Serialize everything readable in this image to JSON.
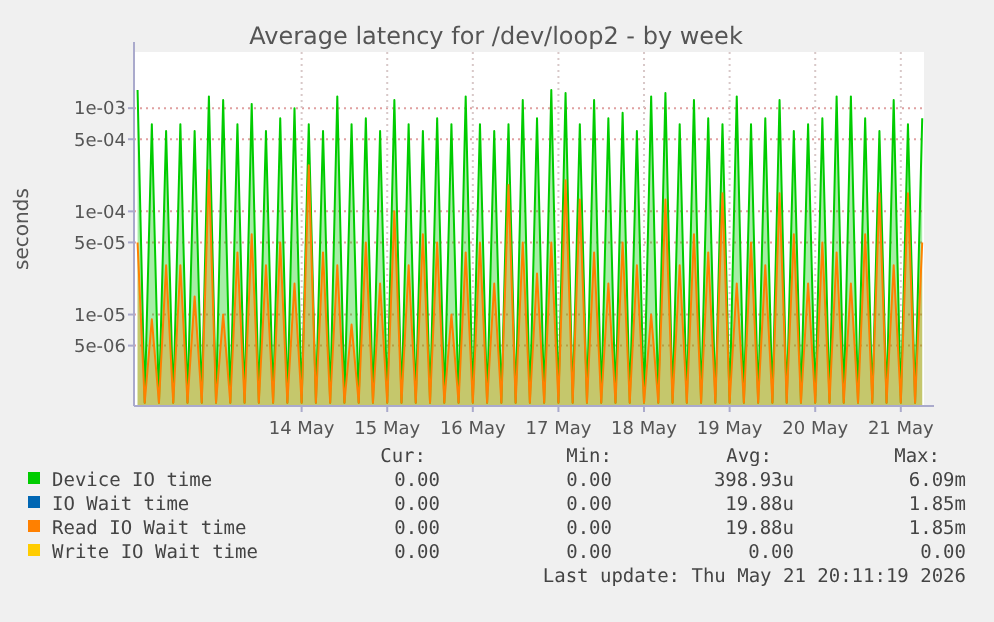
{
  "chart_data": {
    "type": "area",
    "title": "Average latency for /dev/loop2 - by week",
    "ylabel": "seconds",
    "log": "y",
    "grid": true,
    "legend": "bottom",
    "xlim": [
      "2026-05-12T13:00",
      "2026-05-21T18:30"
    ],
    "xticks": [
      {
        "value": "2026-05-14T12:00",
        "label": "14 May"
      },
      {
        "value": "2026-05-15T12:00",
        "label": "15 May"
      },
      {
        "value": "2026-05-16T12:00",
        "label": "16 May"
      },
      {
        "value": "2026-05-17T12:00",
        "label": "17 May"
      },
      {
        "value": "2026-05-18T12:00",
        "label": "18 May"
      },
      {
        "value": "2026-05-19T12:00",
        "label": "19 May"
      },
      {
        "value": "2026-05-20T12:00",
        "label": "20 May"
      },
      {
        "value": "2026-05-21T12:00",
        "label": "21 May"
      }
    ],
    "ylim": [
      1.3e-06,
      0.0035
    ],
    "yticks": [
      {
        "value": 0.001,
        "label": "1e-03"
      },
      {
        "value": 0.0005,
        "label": "5e-04"
      },
      {
        "value": 0.0001,
        "label": "1e-04"
      },
      {
        "value": 5e-05,
        "label": "5e-05"
      },
      {
        "value": 1e-05,
        "label": "1e-05"
      },
      {
        "value": 5e-06,
        "label": "5e-06"
      }
    ],
    "x": [
      "2026-05-12T14:00",
      "2026-05-12T16:00",
      "2026-05-12T18:00",
      "2026-05-12T20:00",
      "2026-05-12T22:00",
      "2026-05-13T00:00",
      "2026-05-13T02:00",
      "2026-05-13T04:00",
      "2026-05-13T06:00",
      "2026-05-13T08:00",
      "2026-05-13T10:00",
      "2026-05-13T12:00",
      "2026-05-13T14:00",
      "2026-05-13T16:00",
      "2026-05-13T18:00",
      "2026-05-13T20:00",
      "2026-05-13T22:00",
      "2026-05-14T00:00",
      "2026-05-14T02:00",
      "2026-05-14T04:00",
      "2026-05-14T06:00",
      "2026-05-14T08:00",
      "2026-05-14T10:00",
      "2026-05-14T12:00",
      "2026-05-14T14:00",
      "2026-05-14T16:00",
      "2026-05-14T18:00",
      "2026-05-14T20:00",
      "2026-05-14T22:00",
      "2026-05-15T00:00",
      "2026-05-15T02:00",
      "2026-05-15T04:00",
      "2026-05-15T06:00",
      "2026-05-15T08:00",
      "2026-05-15T10:00",
      "2026-05-15T12:00",
      "2026-05-15T14:00",
      "2026-05-15T16:00",
      "2026-05-15T18:00",
      "2026-05-15T20:00",
      "2026-05-15T22:00",
      "2026-05-16T00:00",
      "2026-05-16T02:00",
      "2026-05-16T04:00",
      "2026-05-16T06:00",
      "2026-05-16T08:00",
      "2026-05-16T10:00",
      "2026-05-16T12:00",
      "2026-05-16T14:00",
      "2026-05-16T16:00",
      "2026-05-16T18:00",
      "2026-05-16T20:00",
      "2026-05-16T22:00",
      "2026-05-17T00:00",
      "2026-05-17T02:00",
      "2026-05-17T04:00",
      "2026-05-17T06:00",
      "2026-05-17T08:00",
      "2026-05-17T10:00",
      "2026-05-17T12:00",
      "2026-05-17T14:00",
      "2026-05-17T16:00",
      "2026-05-17T18:00",
      "2026-05-17T20:00",
      "2026-05-17T22:00",
      "2026-05-18T00:00",
      "2026-05-18T02:00",
      "2026-05-18T04:00",
      "2026-05-18T06:00",
      "2026-05-18T08:00",
      "2026-05-18T10:00",
      "2026-05-18T12:00",
      "2026-05-18T14:00",
      "2026-05-18T16:00",
      "2026-05-18T18:00",
      "2026-05-18T20:00",
      "2026-05-18T22:00",
      "2026-05-19T00:00",
      "2026-05-19T02:00",
      "2026-05-19T04:00",
      "2026-05-19T06:00",
      "2026-05-19T08:00",
      "2026-05-19T10:00",
      "2026-05-19T12:00",
      "2026-05-19T14:00",
      "2026-05-19T16:00",
      "2026-05-19T18:00",
      "2026-05-19T20:00",
      "2026-05-19T22:00",
      "2026-05-20T00:00",
      "2026-05-20T02:00",
      "2026-05-20T04:00",
      "2026-05-20T06:00",
      "2026-05-20T08:00",
      "2026-05-20T10:00",
      "2026-05-20T12:00",
      "2026-05-20T14:00",
      "2026-05-20T16:00",
      "2026-05-20T18:00",
      "2026-05-20T20:00",
      "2026-05-20T22:00",
      "2026-05-21T00:00",
      "2026-05-21T02:00",
      "2026-05-21T04:00",
      "2026-05-21T06:00",
      "2026-05-21T08:00",
      "2026-05-21T10:00",
      "2026-05-21T12:00",
      "2026-05-21T14:00",
      "2026-05-21T16:00",
      "2026-05-21T18:00"
    ],
    "series": [
      {
        "name": "Device IO time",
        "color": "#00cc00",
        "values": [
          0.0015,
          1.4e-06,
          0.0007,
          1.4e-06,
          0.0006,
          1.4e-06,
          0.0007,
          1.4e-06,
          0.0006,
          1.4e-06,
          0.0013,
          1.4e-06,
          0.0012,
          1.4e-06,
          0.0007,
          1.4e-06,
          0.0011,
          1.4e-06,
          0.0006,
          1.4e-06,
          0.0008,
          1.4e-06,
          0.001,
          1.4e-06,
          0.0007,
          1.4e-06,
          0.0006,
          1.4e-06,
          0.0013,
          1.4e-06,
          0.0007,
          1.4e-06,
          0.0008,
          1.4e-06,
          0.0006,
          1.4e-06,
          0.0012,
          1.4e-06,
          0.0007,
          1.4e-06,
          0.0006,
          1.4e-06,
          0.0008,
          1.4e-06,
          0.0007,
          1.4e-06,
          0.0013,
          1.4e-06,
          0.0007,
          1.4e-06,
          0.0006,
          1.4e-06,
          0.0007,
          1.4e-06,
          0.0012,
          1.4e-06,
          0.0008,
          1.4e-06,
          0.0015,
          1.4e-06,
          0.0014,
          1.4e-06,
          0.0007,
          1.4e-06,
          0.0012,
          1.4e-06,
          0.0008,
          1.4e-06,
          0.0009,
          1.4e-06,
          0.0006,
          1.4e-06,
          0.0013,
          1.4e-06,
          0.0014,
          1.4e-06,
          0.0007,
          1.4e-06,
          0.0012,
          1.4e-06,
          0.0008,
          1.4e-06,
          0.0007,
          1.4e-06,
          0.0013,
          1.4e-06,
          0.0007,
          1.4e-06,
          0.0008,
          1.4e-06,
          0.0012,
          1.4e-06,
          0.0006,
          1.4e-06,
          0.0007,
          1.4e-06,
          0.0008,
          1.4e-06,
          0.0013,
          1.4e-06,
          0.0013,
          1.4e-06,
          0.0008,
          1.4e-06,
          0.0006,
          1.4e-06,
          0.0012,
          1.4e-06,
          0.0007,
          1.4e-06,
          0.0008
        ]
      },
      {
        "name": "IO Wait time",
        "color": "#0066b3",
        "values": [
          null,
          null,
          null,
          null,
          null,
          null,
          null,
          null,
          null,
          null,
          null,
          null,
          null,
          null,
          null,
          null,
          null,
          null,
          null,
          null,
          null,
          null,
          null,
          null,
          null,
          null,
          null,
          null,
          null,
          null,
          null,
          null,
          null,
          null,
          null,
          null,
          null,
          null,
          null,
          null,
          null,
          null,
          null,
          null,
          null,
          null,
          null,
          null,
          null,
          null,
          null,
          null,
          null,
          null,
          null,
          null,
          null,
          null,
          null,
          null,
          null,
          null,
          null,
          null,
          null,
          null,
          null,
          null,
          null,
          null,
          null,
          null,
          null,
          null,
          null,
          null,
          null,
          null,
          null,
          null,
          null,
          null,
          null,
          null,
          null,
          null,
          null,
          null,
          null,
          null,
          null,
          null,
          null,
          null,
          null,
          null,
          null,
          null,
          null,
          null,
          null,
          null,
          null,
          null,
          null,
          null,
          null,
          null,
          null,
          null,
          null
        ]
      },
      {
        "name": "Read IO Wait time",
        "color": "#ff8000",
        "values": [
          5e-05,
          1.4e-06,
          9e-06,
          1.4e-06,
          3e-05,
          1.4e-06,
          3e-05,
          1.4e-06,
          1.5e-05,
          1.4e-06,
          0.00025,
          1.4e-06,
          1e-05,
          1.4e-06,
          4e-05,
          1.4e-06,
          6e-05,
          1.4e-06,
          3e-05,
          1.4e-06,
          5e-05,
          1.4e-06,
          2e-05,
          1.4e-06,
          0.00028,
          1.4e-06,
          4e-05,
          1.4e-06,
          3e-05,
          1.4e-06,
          8e-06,
          1.4e-06,
          5e-05,
          1.4e-06,
          2e-05,
          1.4e-06,
          0.0001,
          1.4e-06,
          3e-05,
          1.4e-06,
          6e-05,
          1.4e-06,
          5e-05,
          1.4e-06,
          1e-05,
          1.4e-06,
          4e-05,
          1.4e-06,
          5e-05,
          1.4e-06,
          2e-05,
          1.4e-06,
          0.00018,
          1.4e-06,
          5e-05,
          1.4e-06,
          2.5e-05,
          1.4e-06,
          5e-05,
          1.4e-06,
          0.0002,
          1.4e-06,
          0.00013,
          1.4e-06,
          4e-05,
          1.4e-06,
          2e-05,
          1.4e-06,
          5e-05,
          1.4e-06,
          3e-05,
          1.4e-06,
          1e-05,
          1.4e-06,
          0.00013,
          1.4e-06,
          3e-05,
          1.4e-06,
          6e-05,
          1.4e-06,
          4e-05,
          1.4e-06,
          0.00015,
          1.4e-06,
          2e-05,
          1.4e-06,
          5e-05,
          1.4e-06,
          3e-05,
          1.4e-06,
          0.00015,
          1.4e-06,
          6e-05,
          1.4e-06,
          2e-05,
          1.4e-06,
          5e-05,
          1.4e-06,
          4e-05,
          1.4e-06,
          2e-05,
          1.4e-06,
          6e-05,
          1.4e-06,
          0.00015,
          1.4e-06,
          3e-05,
          1.4e-06,
          0.00015,
          1.4e-06,
          5e-05
        ]
      },
      {
        "name": "Write IO Wait time",
        "color": "#ffcc00",
        "values": [
          null,
          null,
          null,
          null,
          null,
          null,
          null,
          null,
          null,
          null,
          null,
          null,
          null,
          null,
          null,
          null,
          null,
          null,
          null,
          null,
          null,
          null,
          null,
          null,
          null,
          null,
          null,
          null,
          null,
          null,
          null,
          null,
          null,
          null,
          null,
          null,
          null,
          null,
          null,
          null,
          null,
          null,
          null,
          null,
          null,
          null,
          null,
          null,
          null,
          null,
          null,
          null,
          null,
          null,
          null,
          null,
          null,
          null,
          null,
          null,
          null,
          null,
          null,
          null,
          null,
          null,
          null,
          null,
          null,
          null,
          null,
          null,
          null,
          null,
          null,
          null,
          null,
          null,
          null,
          null,
          null,
          null,
          null,
          null,
          null,
          null,
          null,
          null,
          null,
          null,
          null,
          null,
          null,
          null,
          null,
          null,
          null,
          null,
          null,
          null,
          null,
          null,
          null,
          null,
          null,
          null,
          null,
          null,
          null,
          null,
          null
        ]
      }
    ],
    "annotations": [
      "Cur:",
      "Min:",
      "Avg:",
      "Max:",
      "0.00",
      "0.00",
      "398.93u",
      "6.09m",
      "0.00",
      "0.00",
      "19.88u",
      "1.85m",
      "0.00",
      "0.00",
      "19.88u",
      "1.85m",
      "0.00",
      "0.00",
      "0.00",
      "0.00",
      "Last update: Thu May 21 20:11:19 2026"
    ]
  }
}
